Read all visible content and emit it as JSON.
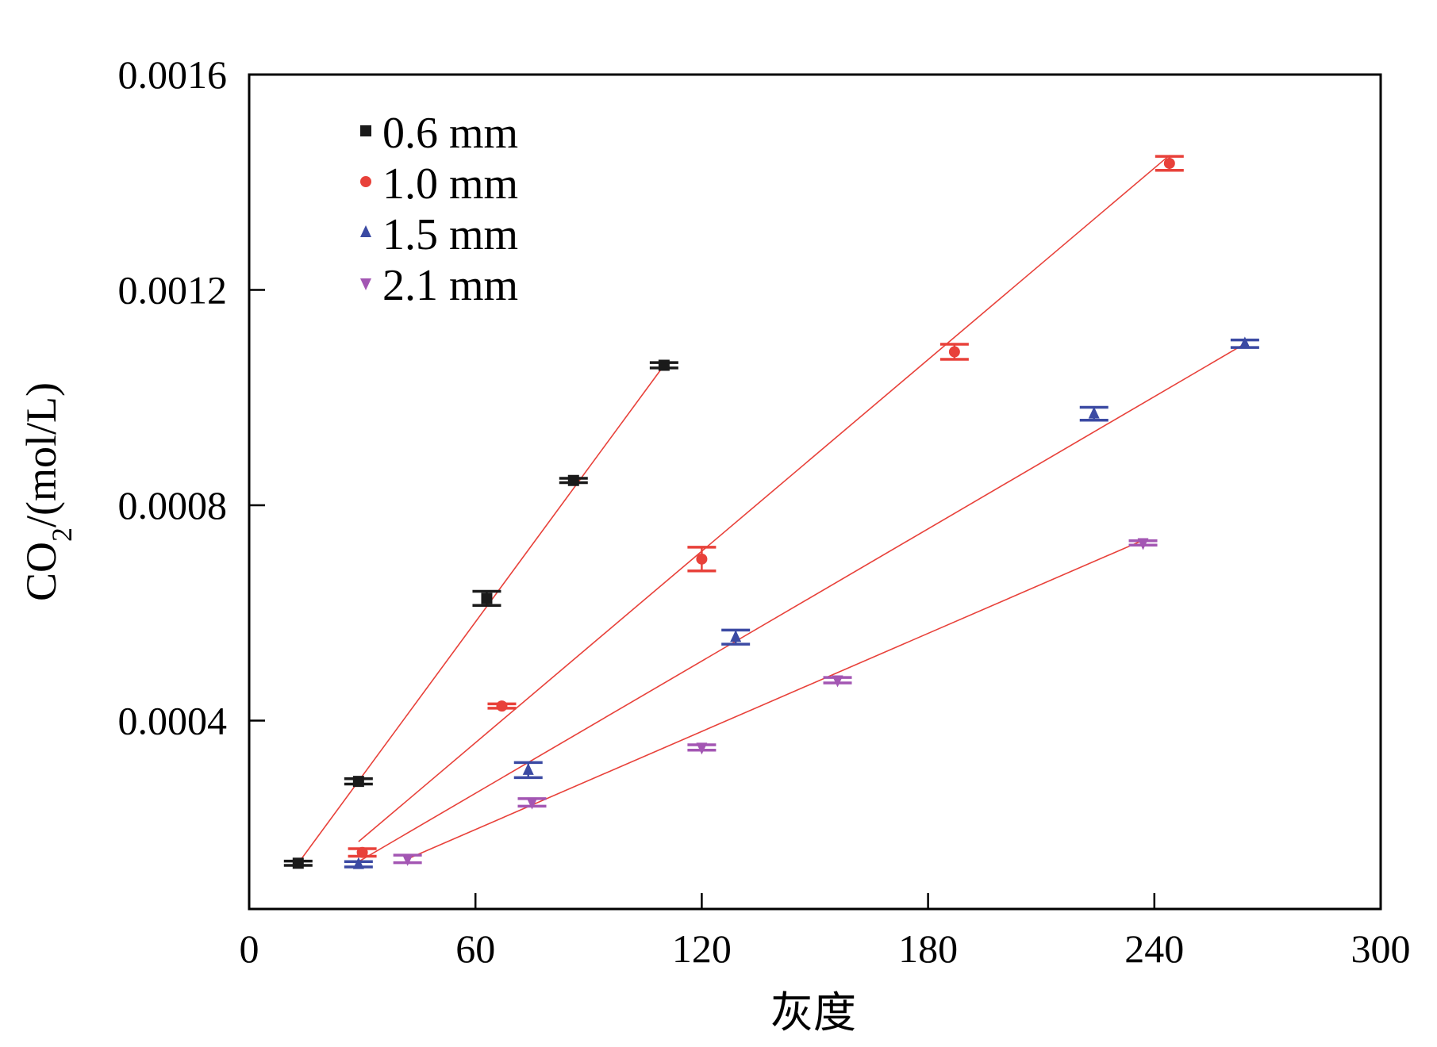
{
  "chart_data": {
    "type": "scatter",
    "title": "",
    "xlabel": "灰度",
    "ylabel": {
      "prefix": "CO",
      "subscript": "2",
      "suffix": "/(mol/L)"
    },
    "xlim": [
      0,
      300
    ],
    "ylim": [
      5e-05,
      0.0016
    ],
    "xticks": [
      0,
      60,
      120,
      180,
      240,
      300
    ],
    "xtick_labels": [
      "0",
      "60",
      "120",
      "180",
      "240",
      "300"
    ],
    "yticks": [
      0.0004,
      0.0008,
      0.0012,
      0.0016
    ],
    "ytick_labels": [
      "0.0004",
      "0.0008",
      "0.0012",
      "0.0016"
    ],
    "grid": false,
    "legend_position": "top-left",
    "fit_color": "#e8413a",
    "series": [
      {
        "name": "0.6 mm",
        "marker": "square",
        "color": "#1a1a1a",
        "x": [
          13,
          29,
          63,
          86,
          110
        ],
        "y": [
          0.000135,
          0.000287,
          0.000627,
          0.000846,
          0.00106
        ],
        "err": [
          4e-06,
          5e-06,
          1.3e-05,
          4e-06,
          5e-06
        ]
      },
      {
        "name": "1.0 mm",
        "marker": "circle",
        "color": "#e8413a",
        "x": [
          30,
          67,
          120,
          187,
          244
        ],
        "y": [
          0.000155,
          0.000427,
          0.0007,
          0.001085,
          0.001435
        ],
        "err": [
          7e-06,
          4e-06,
          2.2e-05,
          1.4e-05,
          1.3e-05
        ]
      },
      {
        "name": "1.5 mm",
        "marker": "triangle-up",
        "color": "#3b4aa3",
        "x": [
          29,
          74,
          129,
          224,
          264
        ],
        "y": [
          0.000133,
          0.000308,
          0.000555,
          0.00097,
          0.0011
        ],
        "err": [
          5e-06,
          1.4e-05,
          1.3e-05,
          1.2e-05,
          7e-06
        ]
      },
      {
        "name": "2.1 mm",
        "marker": "triangle-down",
        "color": "#a356b3",
        "x": [
          42,
          75,
          120,
          156,
          237
        ],
        "y": [
          0.000143,
          0.000248,
          0.00035,
          0.000475,
          0.00073
        ],
        "err": [
          7e-06,
          7e-06,
          5e-06,
          5e-06,
          4e-06
        ]
      }
    ],
    "fit_lines": [
      {
        "series": "0.6 mm",
        "x": [
          13,
          110
        ],
        "y": [
          0.000135,
          0.00106
        ]
      },
      {
        "series": "1.0 mm",
        "x": [
          29,
          244
        ],
        "y": [
          0.000175,
          0.00145
        ]
      },
      {
        "series": "1.5 mm",
        "x": [
          29,
          264
        ],
        "y": [
          0.000138,
          0.0011
        ]
      },
      {
        "series": "2.1 mm",
        "x": [
          42,
          237
        ],
        "y": [
          0.000143,
          0.000735
        ]
      }
    ]
  }
}
